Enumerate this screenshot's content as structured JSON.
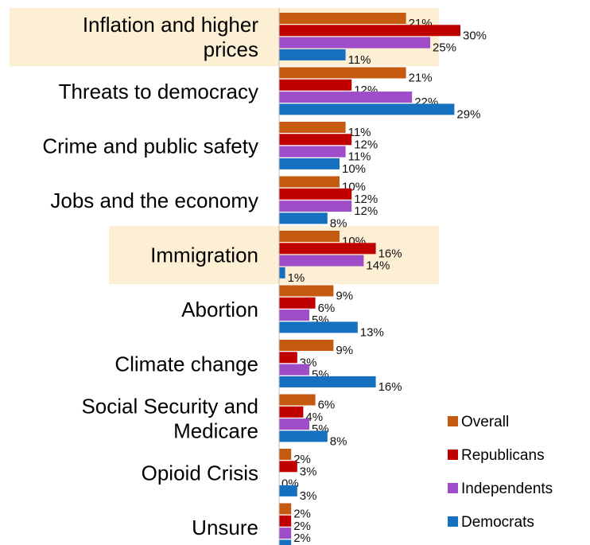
{
  "chart_data": {
    "type": "bar",
    "orientation": "horizontal",
    "categories": [
      "Inflation and higher prices",
      "Threats to democracy",
      "Crime and public safety",
      "Jobs and the economy",
      "Immigration",
      "Abortion",
      "Climate change",
      "Social Security and Medicare",
      "Opioid Crisis",
      "Unsure"
    ],
    "category_lines": [
      [
        "Inflation and higher",
        "prices"
      ],
      [
        "Threats to democracy"
      ],
      [
        "Crime and public safety"
      ],
      [
        "Jobs and the economy"
      ],
      [
        "Immigration"
      ],
      [
        "Abortion"
      ],
      [
        "Climate change"
      ],
      [
        "Social Security and",
        "Medicare"
      ],
      [
        "Opioid Crisis"
      ],
      [
        "Unsure"
      ]
    ],
    "highlighted": [
      "Inflation and higher prices",
      "Immigration"
    ],
    "highlight_color": "#FCEFD3",
    "series": [
      {
        "name": "Overall",
        "color": "#C55A11",
        "values": [
          21,
          21,
          11,
          10,
          10,
          9,
          9,
          6,
          2,
          2
        ]
      },
      {
        "name": "Republicans",
        "color": "#C00000",
        "values": [
          30,
          12,
          12,
          12,
          16,
          6,
          3,
          4,
          3,
          2
        ]
      },
      {
        "name": "Independents",
        "color": "#9E4CC8",
        "values": [
          25,
          22,
          11,
          12,
          14,
          5,
          5,
          5,
          0,
          2
        ]
      },
      {
        "name": "Democrats",
        "color": "#1570C0",
        "values": [
          11,
          29,
          10,
          8,
          1,
          13,
          16,
          8,
          3,
          2
        ]
      }
    ],
    "value_suffix": "%",
    "xlim": [
      0,
      30
    ],
    "grid": false,
    "legend_position": "bottom-right",
    "title": "",
    "xlabel": "",
    "ylabel": ""
  }
}
